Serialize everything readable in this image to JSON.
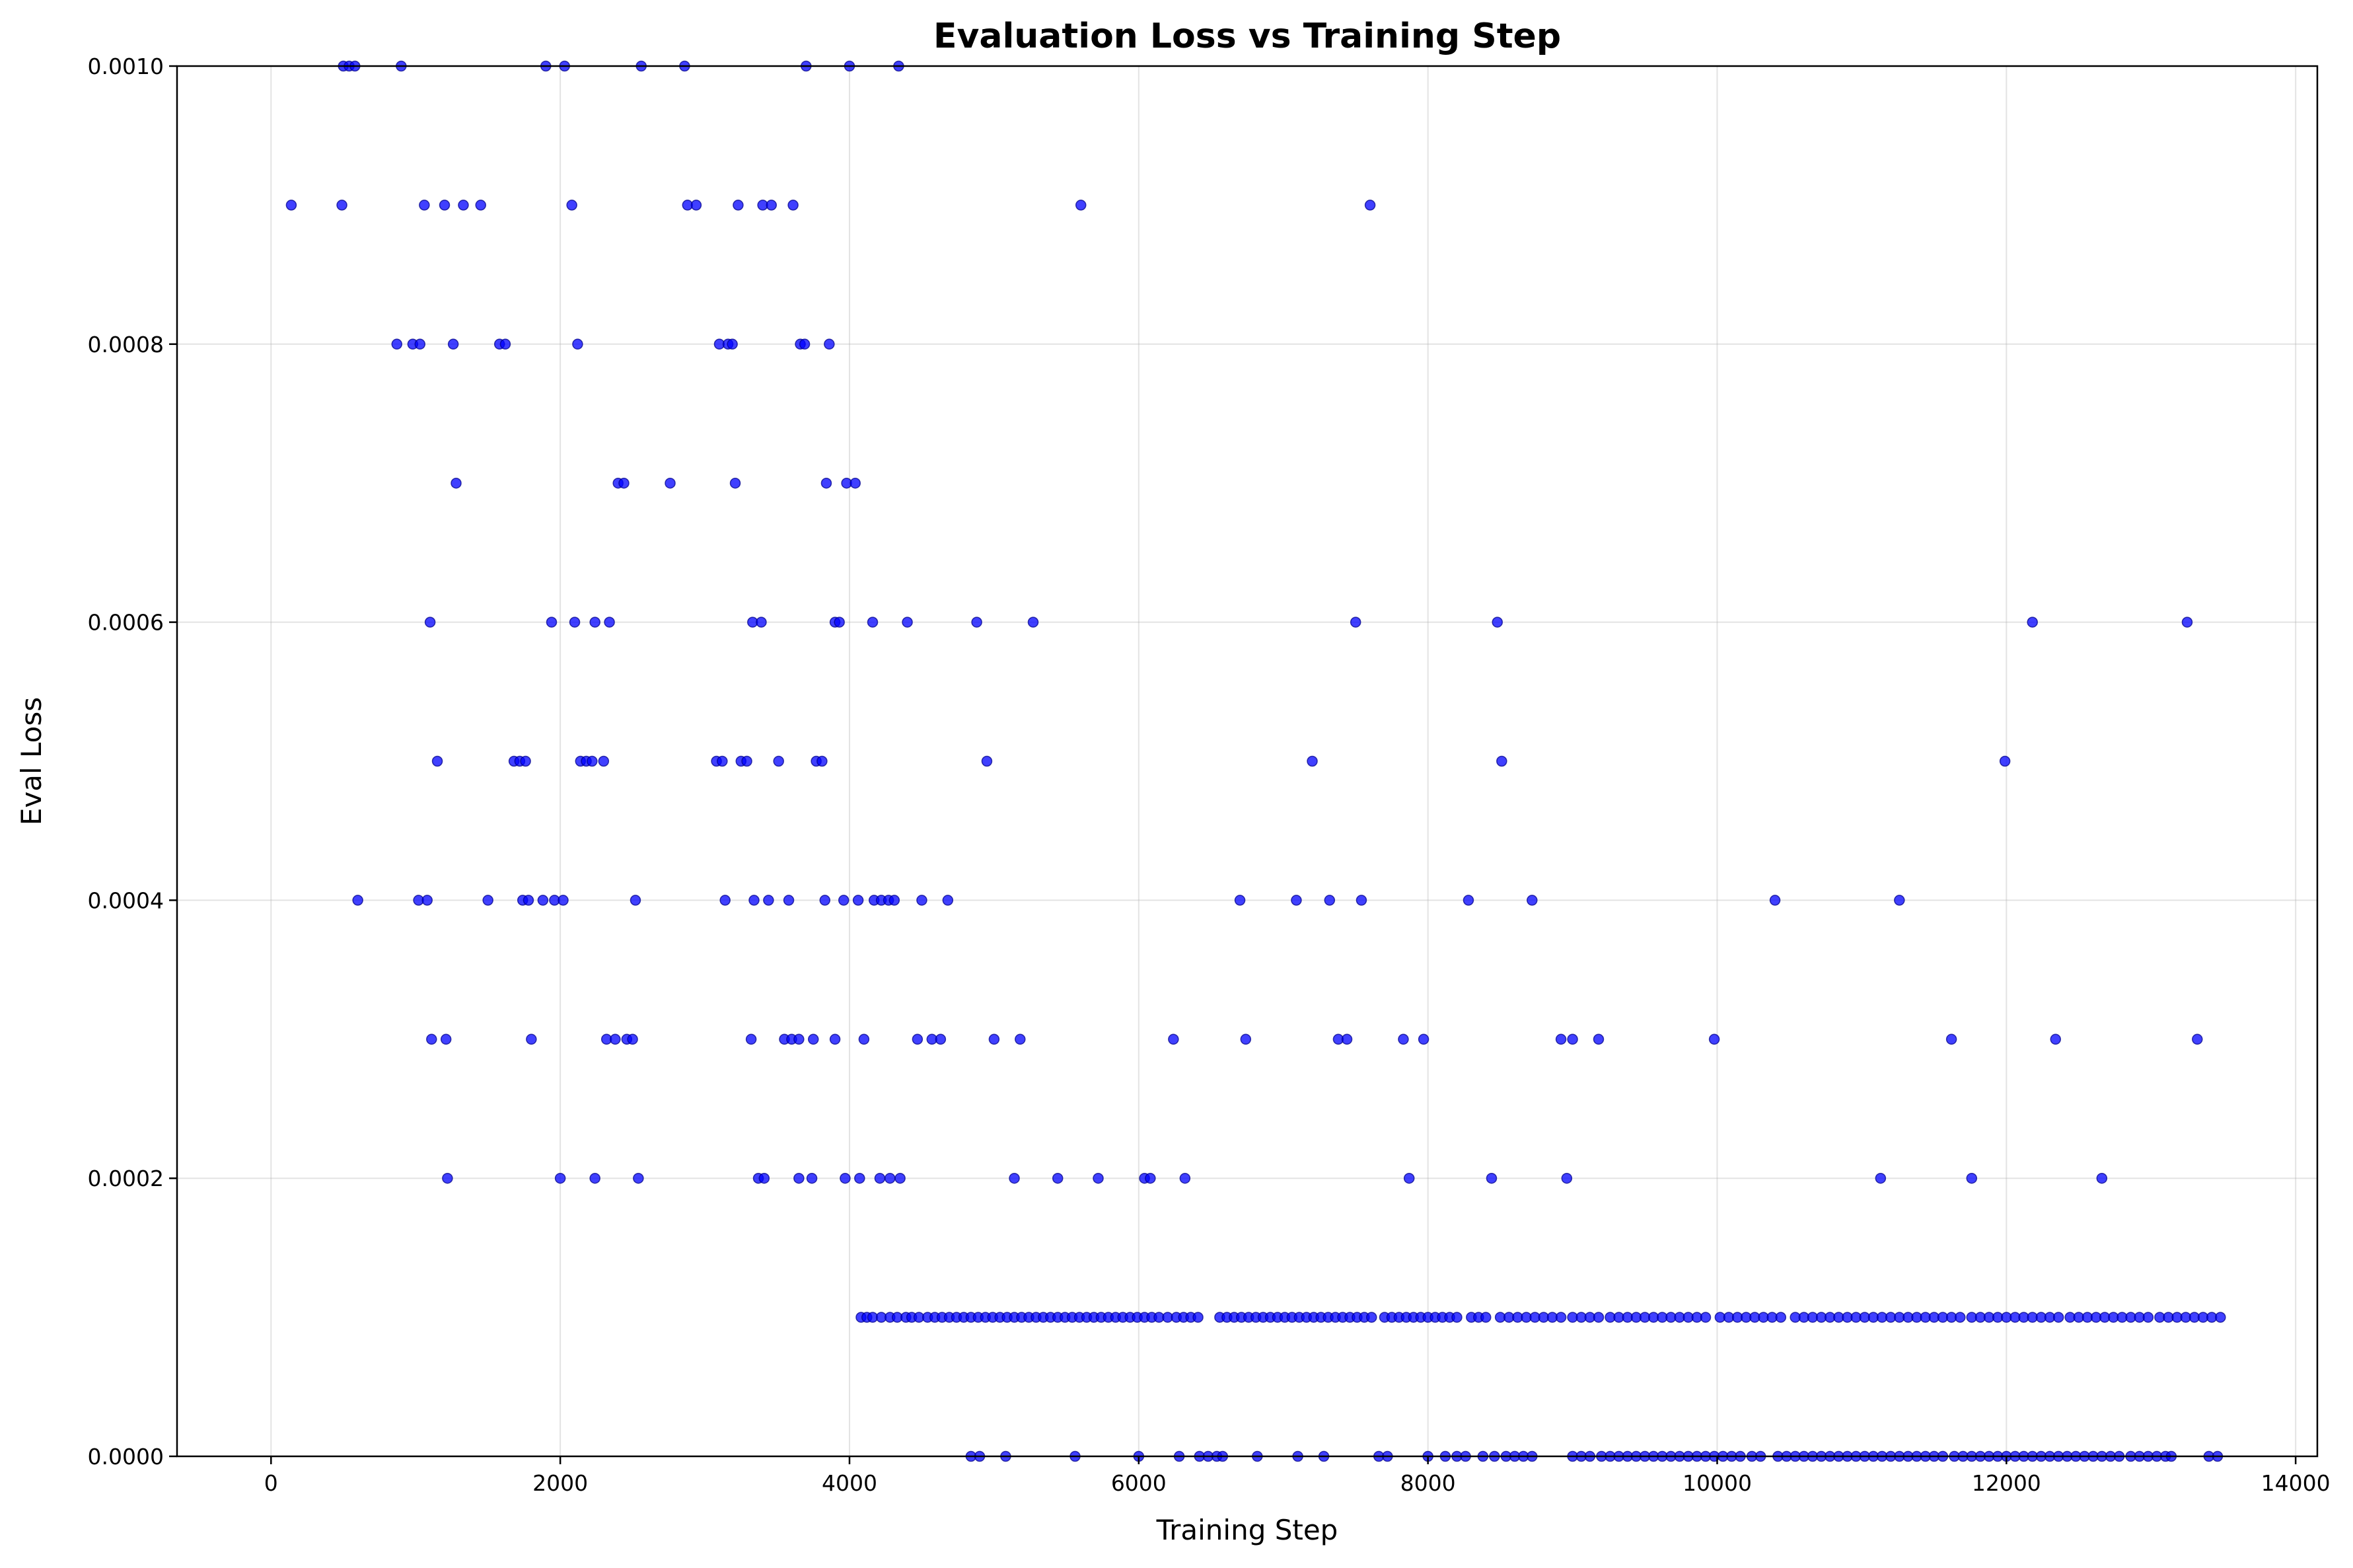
{
  "chart_data": {
    "type": "scatter",
    "title": "Evaluation Loss vs Training Step",
    "xlabel": "Training Step",
    "ylabel": "Eval Loss",
    "xlim": [
      -650,
      14150
    ],
    "ylim": [
      0,
      0.001
    ],
    "grid": true,
    "legend": "none",
    "marker_color": "#0000ff",
    "marker_edge_color": "#00008b",
    "marker_opacity": 0.75,
    "x_ticks": [
      {
        "value": 0,
        "label": "0"
      },
      {
        "value": 2000,
        "label": "2000"
      },
      {
        "value": 4000,
        "label": "4000"
      },
      {
        "value": 6000,
        "label": "6000"
      },
      {
        "value": 8000,
        "label": "8000"
      },
      {
        "value": 10000,
        "label": "10000"
      },
      {
        "value": 12000,
        "label": "12000"
      },
      {
        "value": 14000,
        "label": "14000"
      }
    ],
    "y_ticks": [
      {
        "value": 0,
        "label": "0.0000"
      },
      {
        "value": 0.0002,
        "label": "0.0002"
      },
      {
        "value": 0.0004,
        "label": "0.0004"
      },
      {
        "value": 0.0006,
        "label": "0.0006"
      },
      {
        "value": 0.0008,
        "label": "0.0008"
      },
      {
        "value": 0.001,
        "label": "0.0010"
      }
    ],
    "series": [
      {
        "groups": [
          {
            "y": 0.001,
            "x": [
              500,
              540,
              580,
              900,
              1900,
              2030,
              2560,
              2860,
              3700,
              4000,
              4340
            ]
          },
          {
            "y": 0.0009,
            "x": [
              140,
              490,
              1060,
              1200,
              1330,
              1450,
              2080,
              2880,
              2940,
              3230,
              3400,
              3460,
              3610,
              5600,
              7600
            ]
          },
          {
            "y": 0.0008,
            "x": [
              870,
              980,
              1030,
              1260,
              1580,
              1620,
              2120,
              3100,
              3160,
              3190,
              3660,
              3690,
              3860
            ]
          },
          {
            "y": 0.0007,
            "x": [
              1280,
              2400,
              2440,
              2760,
              3210,
              3840,
              3980,
              4040
            ]
          },
          {
            "y": 0.0006,
            "x": [
              1100,
              1940,
              2100,
              2240,
              2340,
              3330,
              3390,
              3900,
              3930,
              4160,
              4400,
              4880,
              5270,
              7500,
              8480,
              12180,
              13250
            ]
          },
          {
            "y": 0.0005,
            "x": [
              1150,
              1680,
              1720,
              1760,
              2140,
              2180,
              2220,
              2300,
              3080,
              3120,
              3250,
              3290,
              3510,
              3770,
              3810,
              4950,
              7200,
              8510,
              11990
            ]
          },
          {
            "y": 0.0004,
            "x": [
              600,
              1020,
              1080,
              1500,
              1740,
              1780,
              1880,
              1960,
              2020,
              2520,
              3140,
              3340,
              3440,
              3580,
              3830,
              3960,
              4060,
              4170,
              4220,
              4270,
              4310,
              4500,
              4680,
              6700,
              7090,
              7320,
              7540,
              8280,
              8720,
              10400,
              11260
            ]
          },
          {
            "y": 0.0003,
            "x": [
              1110,
              1210,
              1800,
              2320,
              2380,
              2460,
              2500,
              3320,
              3550,
              3600,
              3650,
              3750,
              3900,
              4100,
              4470,
              4570,
              4630,
              5000,
              5180,
              6240,
              6740,
              7380,
              7440,
              7830,
              7970,
              8920,
              9000,
              9180,
              9980,
              11620,
              12340,
              13320
            ]
          },
          {
            "y": 0.0002,
            "x": [
              1220,
              2000,
              2240,
              2540,
              3370,
              3410,
              3650,
              3740,
              3970,
              4070,
              4210,
              4280,
              4350,
              5140,
              5440,
              5720,
              6040,
              6080,
              6320,
              7870,
              8440,
              8960,
              11130,
              11760,
              12660
            ]
          },
          {
            "y": 0.0001,
            "x": [
              4080,
              4120,
              4160,
              4220,
              4280,
              4330,
              4390,
              4430,
              4480,
              4540,
              4590,
              4640,
              4690,
              4740,
              4790,
              4840,
              4890,
              4940,
              4990,
              5040,
              5090,
              5140,
              5190,
              5240,
              5290,
              5340,
              5390,
              5440,
              5490,
              5540,
              5590,
              5640,
              5690,
              5740,
              5790,
              5840,
              5890,
              5940,
              5990,
              6040,
              6090,
              6140,
              6200,
              6260,
              6310,
              6360,
              6410,
              6560,
              6610,
              6660,
              6710,
              6760,
              6810,
              6860,
              6910,
              6960,
              7010,
              7060,
              7110,
              7160,
              7210,
              7260,
              7310,
              7360,
              7410,
              7460,
              7510,
              7560,
              7610,
              7700,
              7750,
              7800,
              7850,
              7900,
              7950,
              8000,
              8050,
              8100,
              8150,
              8200,
              8300,
              8350,
              8400,
              8500,
              8560,
              8620,
              8680,
              8740,
              8800,
              8860,
              8920,
              9000,
              9060,
              9120,
              9180,
              9260,
              9320,
              9380,
              9440,
              9500,
              9560,
              9620,
              9680,
              9740,
              9800,
              9860,
              9920,
              10020,
              10080,
              10140,
              10200,
              10260,
              10320,
              10380,
              10440,
              10540,
              10600,
              10660,
              10720,
              10780,
              10840,
              10900,
              10960,
              11020,
              11080,
              11140,
              11200,
              11260,
              11320,
              11380,
              11440,
              11500,
              11560,
              11620,
              11680,
              11760,
              11820,
              11880,
              11940,
              12000,
              12060,
              12120,
              12180,
              12240,
              12300,
              12360,
              12440,
              12500,
              12560,
              12620,
              12680,
              12740,
              12800,
              12860,
              12920,
              12980,
              13060,
              13120,
              13180,
              13240,
              13300,
              13360,
              13420,
              13480
            ]
          },
          {
            "y": 0.0,
            "x": [
              4840,
              4900,
              5080,
              5560,
              6000,
              6280,
              6420,
              6480,
              6540,
              6580,
              6820,
              7100,
              7280,
              7660,
              7720,
              8000,
              8120,
              8200,
              8260,
              8380,
              8460,
              8540,
              8600,
              8660,
              8720,
              9000,
              9060,
              9120,
              9200,
              9260,
              9320,
              9380,
              9440,
              9500,
              9560,
              9620,
              9680,
              9740,
              9800,
              9860,
              9920,
              9980,
              10040,
              10100,
              10160,
              10240,
              10300,
              10420,
              10480,
              10540,
              10600,
              10660,
              10720,
              10780,
              10840,
              10900,
              10960,
              11020,
              11080,
              11140,
              11200,
              11260,
              11320,
              11380,
              11440,
              11500,
              11560,
              11640,
              11700,
              11760,
              11820,
              11880,
              11940,
              12000,
              12060,
              12120,
              12180,
              12240,
              12300,
              12360,
              12420,
              12480,
              12540,
              12600,
              12660,
              12720,
              12780,
              12860,
              12920,
              12980,
              13040,
              13100,
              13140,
              13400,
              13460
            ]
          }
        ]
      }
    ]
  }
}
